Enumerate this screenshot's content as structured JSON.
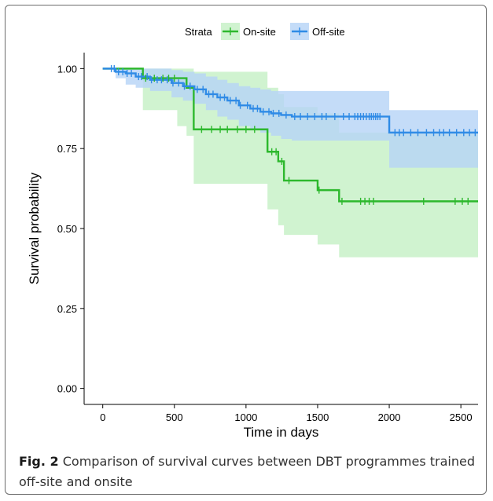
{
  "caption": {
    "label": "Fig. 2",
    "text": "Comparison of survival curves between DBT programmes trained off-site and onsite"
  },
  "colors": {
    "onsite": "#2db82d",
    "onsite_band": "#c4f0c4",
    "offsite": "#2f8be6",
    "offsite_band": "#b5d3f6",
    "axis": "#000000"
  },
  "chart_data": {
    "type": "line",
    "subtype": "kaplan-meier",
    "xlabel": "Time in days",
    "ylabel": "Survival probability",
    "xlim": [
      -130,
      2620
    ],
    "ylim": [
      -0.05,
      1.05
    ],
    "xticks": [
      0,
      500,
      1000,
      1500,
      2000,
      2500
    ],
    "xtick_labels": [
      "0",
      "500",
      "1000",
      "1500",
      "2000",
      "2500"
    ],
    "yticks": [
      0,
      0.25,
      0.5,
      0.75,
      1.0
    ],
    "ytick_labels": [
      "0.00",
      "0.25",
      "0.50",
      "0.75",
      "1.00"
    ],
    "grid": false,
    "legend": {
      "title": "Strata",
      "position": "top",
      "entries": [
        "On-site",
        "Off-site"
      ]
    },
    "series": [
      {
        "name": "On-site",
        "step_x": [
          0,
          280,
          520,
          585,
          635,
          1150,
          1225,
          1265,
          1500,
          1650,
          2620
        ],
        "step_y": [
          1.0,
          0.97,
          0.97,
          0.94,
          0.81,
          0.74,
          0.71,
          0.65,
          0.62,
          0.585,
          0.585
        ],
        "ci_lower": [
          1.0,
          0.87,
          0.82,
          0.79,
          0.64,
          0.56,
          0.51,
          0.48,
          0.45,
          0.41,
          0.41
        ],
        "ci_upper": [
          1.0,
          1.0,
          1.0,
          1.0,
          0.99,
          0.94,
          0.92,
          0.88,
          0.86,
          0.8,
          0.8
        ],
        "censor_x": [
          300,
          360,
          420,
          460,
          500,
          690,
          760,
          820,
          870,
          940,
          1000,
          1060,
          1180,
          1210,
          1250,
          1300,
          1510,
          1670,
          1800,
          1830,
          1860,
          1890,
          2240,
          2460,
          2510,
          2550
        ]
      },
      {
        "name": "Off-site",
        "step_x": [
          0,
          90,
          160,
          230,
          330,
          480,
          560,
          640,
          720,
          800,
          870,
          950,
          1030,
          1100,
          1175,
          1245,
          1320,
          2000,
          2620
        ],
        "step_y": [
          1.0,
          0.99,
          0.985,
          0.975,
          0.965,
          0.955,
          0.945,
          0.935,
          0.92,
          0.91,
          0.9,
          0.885,
          0.875,
          0.865,
          0.86,
          0.855,
          0.85,
          0.8,
          0.8
        ],
        "ci_lower": [
          1.0,
          0.97,
          0.95,
          0.94,
          0.93,
          0.91,
          0.9,
          0.89,
          0.87,
          0.85,
          0.84,
          0.82,
          0.81,
          0.8,
          0.79,
          0.78,
          0.775,
          0.69,
          0.69
        ],
        "ci_upper": [
          1.0,
          1.0,
          1.0,
          1.0,
          1.0,
          0.995,
          0.99,
          0.985,
          0.975,
          0.965,
          0.955,
          0.945,
          0.94,
          0.935,
          0.93,
          0.93,
          0.93,
          0.87,
          0.87
        ],
        "censor_x": [
          60,
          80,
          110,
          140,
          170,
          200,
          250,
          270,
          310,
          340,
          380,
          410,
          450,
          490,
          530,
          570,
          610,
          660,
          700,
          740,
          770,
          820,
          850,
          890,
          930,
          960,
          1010,
          1050,
          1080,
          1120,
          1160,
          1190,
          1230,
          1280,
          1340,
          1380,
          1430,
          1480,
          1530,
          1560,
          1620,
          1680,
          1720,
          1760,
          1780,
          1800,
          1820,
          1840,
          1860,
          1875,
          1890,
          1905,
          1920,
          1935,
          2040,
          2070,
          2100,
          2150,
          2200,
          2260,
          2310,
          2350,
          2380,
          2420,
          2470,
          2520,
          2560,
          2600
        ]
      }
    ]
  }
}
